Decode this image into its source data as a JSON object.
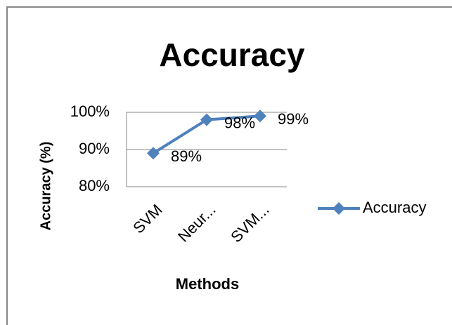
{
  "chart_data": {
    "type": "line",
    "title": "Accuracy",
    "x_label": "Methods",
    "y_label": "Accuracy (%)",
    "categories": [
      "SVM",
      "Neur...",
      "SVM..."
    ],
    "series": [
      {
        "name": "Accuracy",
        "color": "#4f81bd",
        "values": [
          89,
          98,
          99
        ],
        "value_labels": [
          "89%",
          "98%",
          "99%"
        ]
      }
    ],
    "ylim": [
      80,
      100
    ],
    "yticks": [
      {
        "value": 80,
        "label": "80%"
      },
      {
        "value": 90,
        "label": "90%"
      },
      {
        "value": 100,
        "label": "100%"
      }
    ],
    "grid": true,
    "legend": "right"
  }
}
